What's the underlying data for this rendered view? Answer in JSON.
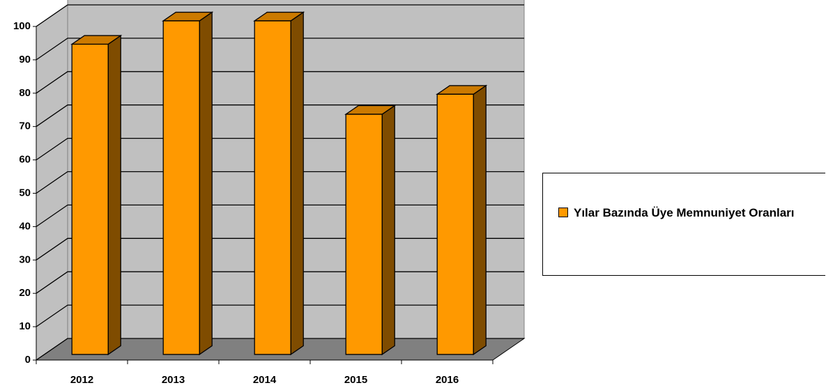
{
  "chart_data": {
    "type": "bar3d",
    "categories": [
      "2012",
      "2013",
      "2014",
      "2015",
      "2016"
    ],
    "series": [
      {
        "name": "Yılar Bazında Üye Memnuniyet Oranları",
        "color": "#ff9900",
        "values": [
          93,
          100,
          100,
          72,
          78
        ]
      }
    ],
    "ylim": [
      0,
      100
    ],
    "yticks": [
      0,
      10,
      20,
      30,
      40,
      50,
      60,
      70,
      80,
      90,
      100
    ],
    "grid": true,
    "legend": "right"
  }
}
